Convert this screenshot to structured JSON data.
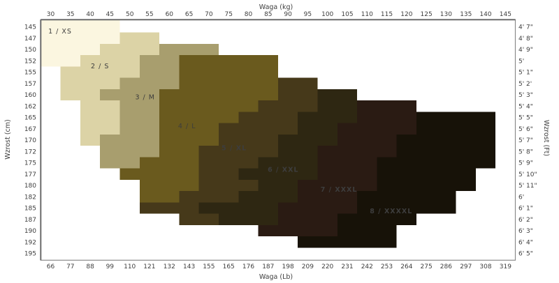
{
  "chart_data": {
    "type": "heatmap",
    "description": "Clothing size chart: stepped size regions by body height (Wzrost) and weight (Waga)",
    "grid": false,
    "axis_ranges": {
      "kg": [
        27.5,
        147.5
      ],
      "cm": [
        143.75,
        196.25
      ]
    },
    "x_axis_top": {
      "title": "Waga  (kg)",
      "ticks": [
        30,
        35,
        40,
        45,
        50,
        55,
        60,
        65,
        70,
        75,
        80,
        85,
        90,
        95,
        100,
        105,
        110,
        115,
        120,
        125,
        130,
        135,
        140,
        145
      ]
    },
    "x_axis_bottom": {
      "title": "Waga  (Lb)",
      "ticks": [
        66,
        77,
        88,
        99,
        110,
        121,
        132,
        143,
        155,
        165,
        176,
        187,
        198,
        209,
        220,
        231,
        242,
        253,
        264,
        275,
        286,
        297,
        308,
        319
      ]
    },
    "y_axis_left": {
      "title": "Wzrost  (cm)",
      "ticks": [
        145,
        147,
        150,
        152,
        155,
        157,
        160,
        162,
        165,
        167,
        170,
        172,
        175,
        177,
        180,
        182,
        185,
        187,
        190,
        192,
        195
      ]
    },
    "y_axis_right": {
      "title": "Wzrost  (Ft)",
      "ticks": [
        "4' 7\"",
        "4' 8\"",
        "4' 9\"",
        "5'",
        "5' 1\"",
        "5' 2'",
        "5' 3\"",
        "5' 4\"",
        "5' 5\"",
        "5' 6\"",
        "5' 7\"",
        "5' 8\"",
        "5' 9\"",
        "5' 10\"",
        "5' 11\"",
        "6'",
        "6' 1\"",
        "6' 2\"",
        "6' 3\"",
        "6' 4\"",
        "6' 5\""
      ]
    },
    "sizes": [
      {
        "label": "1 / XS",
        "color": "#fbf6e0",
        "label_color": "#3a3a3a",
        "bold": false,
        "label_at": [
          32.4,
          146.0
        ],
        "cells": [
          [
            145,
            30,
            45
          ],
          [
            147.5,
            30,
            45
          ],
          [
            150,
            30,
            40
          ],
          [
            152.5,
            30,
            35
          ]
        ]
      },
      {
        "label": "2 / S",
        "color": "#dcd3a6",
        "label_color": "#3a3a3a",
        "bold": false,
        "label_at": [
          42.5,
          153.7
        ],
        "cells": [
          [
            147.5,
            50,
            55
          ],
          [
            150,
            45,
            55
          ],
          [
            152.5,
            40,
            50
          ],
          [
            155,
            35,
            50
          ],
          [
            157.5,
            35,
            45
          ],
          [
            160,
            35,
            40
          ],
          [
            162.5,
            40,
            45
          ],
          [
            165,
            40,
            45
          ],
          [
            167.5,
            40,
            45
          ],
          [
            170,
            40,
            40
          ]
        ]
      },
      {
        "label": "3 / M",
        "color": "#a89e6e",
        "label_color": "#3a3a3a",
        "bold": false,
        "label_at": [
          53.9,
          160.5
        ],
        "cells": [
          [
            150,
            60,
            70
          ],
          [
            152.5,
            55,
            60
          ],
          [
            155,
            55,
            60
          ],
          [
            157.5,
            50,
            60
          ],
          [
            160,
            45,
            55
          ],
          [
            162.5,
            50,
            55
          ],
          [
            165,
            50,
            55
          ],
          [
            167.5,
            50,
            55
          ],
          [
            170,
            45,
            55
          ],
          [
            172.5,
            45,
            55
          ],
          [
            175,
            45,
            50
          ]
        ]
      },
      {
        "label": "4 / L",
        "color": "#6a5a1e",
        "label_color": "#2a2414",
        "bold": false,
        "label_at": [
          64.5,
          166.9
        ],
        "cells": [
          [
            152.5,
            65,
            85
          ],
          [
            155,
            65,
            85
          ],
          [
            157.5,
            65,
            85
          ],
          [
            160,
            60,
            85
          ],
          [
            162.5,
            60,
            80
          ],
          [
            165,
            60,
            75
          ],
          [
            167.5,
            60,
            70
          ],
          [
            170,
            60,
            70
          ],
          [
            172.5,
            60,
            65
          ],
          [
            175,
            55,
            65
          ],
          [
            177.5,
            50,
            65
          ],
          [
            180,
            55,
            65
          ],
          [
            182.5,
            55,
            60
          ]
        ]
      },
      {
        "label": "5 / XL",
        "color": "#46391a",
        "label_color": "#ffffff",
        "bold": true,
        "label_at": [
          76.4,
          171.8
        ],
        "cells": [
          [
            157.5,
            90,
            95
          ],
          [
            160,
            90,
            95
          ],
          [
            162.5,
            85,
            95
          ],
          [
            165,
            80,
            90
          ],
          [
            167.5,
            75,
            90
          ],
          [
            170,
            75,
            85
          ],
          [
            172.5,
            70,
            85
          ],
          [
            175,
            70,
            80
          ],
          [
            177.5,
            70,
            75
          ],
          [
            180,
            70,
            80
          ],
          [
            182.5,
            65,
            75
          ],
          [
            185,
            55,
            65
          ],
          [
            187.5,
            65,
            70
          ]
        ]
      },
      {
        "label": "6 / XXL",
        "color": "#2e2712",
        "label_color": "#ffffff",
        "bold": true,
        "label_at": [
          88.8,
          176.5
        ],
        "cells": [
          [
            160,
            100,
            105
          ],
          [
            162.5,
            100,
            105
          ],
          [
            165,
            95,
            105
          ],
          [
            167.5,
            95,
            100
          ],
          [
            170,
            90,
            100
          ],
          [
            172.5,
            90,
            95
          ],
          [
            175,
            85,
            95
          ],
          [
            177.5,
            80,
            95
          ],
          [
            180,
            85,
            90
          ],
          [
            182.5,
            80,
            90
          ],
          [
            185,
            70,
            85
          ],
          [
            187.5,
            75,
            85
          ]
        ]
      },
      {
        "label": "7 / XXXL",
        "color": "#2a1b13",
        "label_color": "#ffffff",
        "bold": true,
        "label_at": [
          102.9,
          180.9
        ],
        "cells": [
          [
            162.5,
            110,
            120
          ],
          [
            165,
            110,
            120
          ],
          [
            167.5,
            105,
            120
          ],
          [
            170,
            105,
            115
          ],
          [
            172.5,
            100,
            115
          ],
          [
            175,
            100,
            110
          ],
          [
            177.5,
            100,
            110
          ],
          [
            180,
            95,
            110
          ],
          [
            182.5,
            95,
            105
          ],
          [
            185,
            90,
            105
          ],
          [
            187.5,
            90,
            100
          ],
          [
            190,
            85,
            100
          ]
        ]
      },
      {
        "label": "8 / XXXXL",
        "color": "#171208",
        "label_color": "#ffffff",
        "bold": true,
        "label_at": [
          116.1,
          185.7
        ],
        "cells": [
          [
            165,
            125,
            140
          ],
          [
            167.5,
            125,
            140
          ],
          [
            170,
            120,
            140
          ],
          [
            172.5,
            120,
            140
          ],
          [
            175,
            115,
            140
          ],
          [
            177.5,
            115,
            135
          ],
          [
            180,
            115,
            135
          ],
          [
            182.5,
            110,
            130
          ],
          [
            185,
            110,
            130
          ],
          [
            187.5,
            105,
            120
          ],
          [
            190,
            105,
            115
          ],
          [
            192.5,
            95,
            115
          ]
        ]
      }
    ],
    "colors": {
      "background": "#ffffff",
      "border": "#8a8a8a",
      "border_heavy": "#6b6b6b",
      "tick_text": "#3d3d3d"
    }
  }
}
